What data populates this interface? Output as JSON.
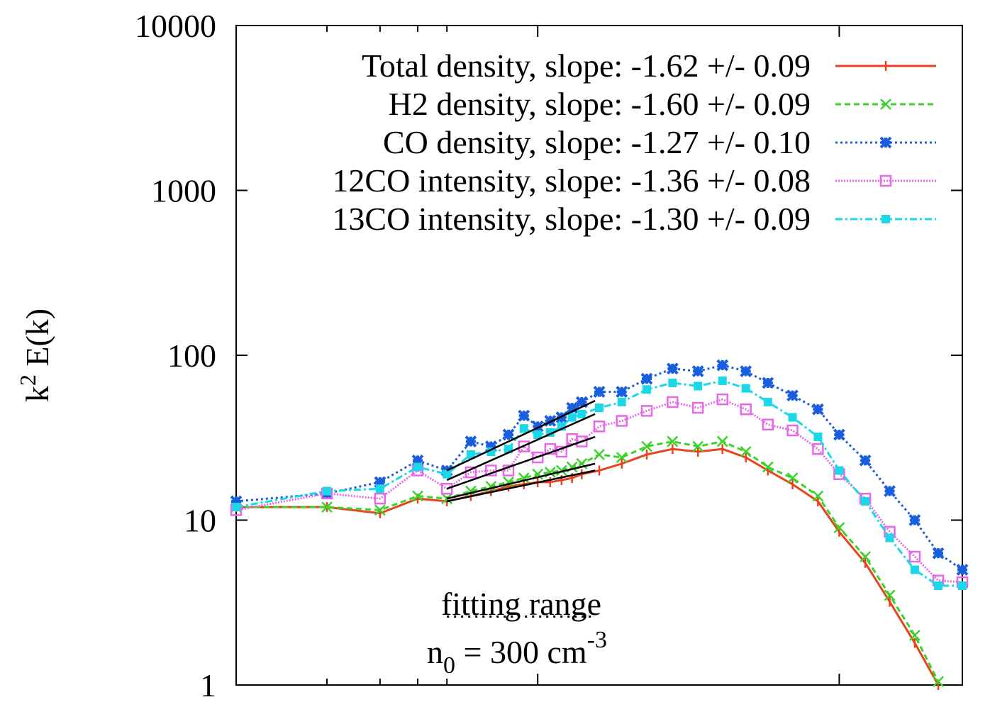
{
  "chart_data": {
    "type": "line",
    "ylabel": {
      "base": "k",
      "sup": "2",
      "rest": " E(k)"
    },
    "xscale": "log",
    "yscale": "log",
    "xlim": [
      1,
      256
    ],
    "ylim": [
      1,
      10000
    ],
    "xticks": [
      2,
      3,
      4,
      5,
      10,
      100
    ],
    "yticks": [
      1,
      10,
      100,
      1000,
      10000
    ],
    "legend": "top-right",
    "x": [
      1,
      2,
      3,
      4,
      5,
      6,
      7,
      8,
      9,
      10,
      11,
      12,
      13,
      14,
      16,
      19,
      23,
      28,
      34,
      41,
      49,
      58,
      70,
      85,
      100,
      122,
      147,
      178,
      213,
      256
    ],
    "series": [
      {
        "name": "Total density, slope: -1.62 +/- 0.09",
        "color": "#e8431e",
        "dash": "",
        "marker": "plus",
        "values": [
          12,
          12,
          11,
          13.5,
          13,
          14,
          15,
          16,
          16.5,
          17,
          17,
          17.5,
          18,
          19,
          20,
          22,
          25,
          27,
          26,
          27,
          24,
          20,
          16.5,
          13,
          8.5,
          5.5,
          3.2,
          1.8,
          1.0,
          null
        ]
      },
      {
        "name": "H2 density, slope: -1.60 +/- 0.09",
        "color": "#3cd22a",
        "dash": "8 5",
        "marker": "cross",
        "values": [
          12,
          12,
          11.5,
          14,
          13.5,
          15,
          16,
          17,
          18,
          19,
          19.5,
          20,
          21,
          22,
          25,
          24,
          28,
          30,
          28,
          30,
          26,
          21,
          18,
          14,
          9,
          6,
          3.5,
          2,
          1.05,
          null
        ]
      },
      {
        "name": "CO density, slope: -1.27 +/- 0.10",
        "color": "#1a5ee0",
        "dash": "3 4",
        "marker": "star",
        "values": [
          13,
          14.5,
          17,
          23,
          20,
          30,
          28,
          33,
          43,
          37,
          40,
          42,
          48,
          52,
          60,
          60,
          72,
          83,
          80,
          87,
          80,
          68,
          57,
          47,
          33,
          23,
          15,
          10,
          6.3,
          5
        ]
      },
      {
        "name": "12CO intensity, slope: -1.36 +/- 0.08",
        "color": "#e868e8",
        "dash": "2 2",
        "marker": "square-open",
        "values": [
          11.5,
          14.5,
          13.5,
          20,
          15.5,
          19.5,
          20,
          20,
          28,
          24,
          27,
          26,
          31,
          30,
          37,
          40,
          46,
          52,
          48,
          54,
          47,
          38,
          35,
          27,
          19,
          13.5,
          8.5,
          6,
          4.3,
          4.2
        ]
      },
      {
        "name": "13CO intensity, slope: -1.30 +/- 0.09",
        "color": "#1ad8e8",
        "dash": "10 4 3 4",
        "marker": "square",
        "values": [
          12,
          15,
          15.5,
          21,
          19,
          25,
          26,
          27,
          36,
          33,
          34,
          37,
          42,
          44,
          48,
          52,
          62,
          68,
          65,
          70,
          63,
          52,
          42,
          32,
          20,
          13,
          7.8,
          5,
          4,
          4
        ]
      }
    ],
    "fits": [
      {
        "x": [
          5,
          15.5
        ],
        "values": [
          20,
          53
        ]
      },
      {
        "x": [
          5,
          15.5
        ],
        "values": [
          17.5,
          44
        ]
      },
      {
        "x": [
          5,
          15.5
        ],
        "values": [
          15.5,
          32
        ]
      },
      {
        "x": [
          5,
          15.5
        ],
        "values": [
          13.5,
          22
        ]
      },
      {
        "x": [
          5,
          15.5
        ],
        "values": [
          13,
          20
        ]
      }
    ],
    "fit_color": "#000000",
    "fitting_range": {
      "label": "fitting range",
      "x": [
        5,
        15.5
      ],
      "y": 2.6
    },
    "density_note": {
      "base": "n",
      "sub": "0",
      "mid": " = 300 cm",
      "sup": "-3"
    }
  }
}
